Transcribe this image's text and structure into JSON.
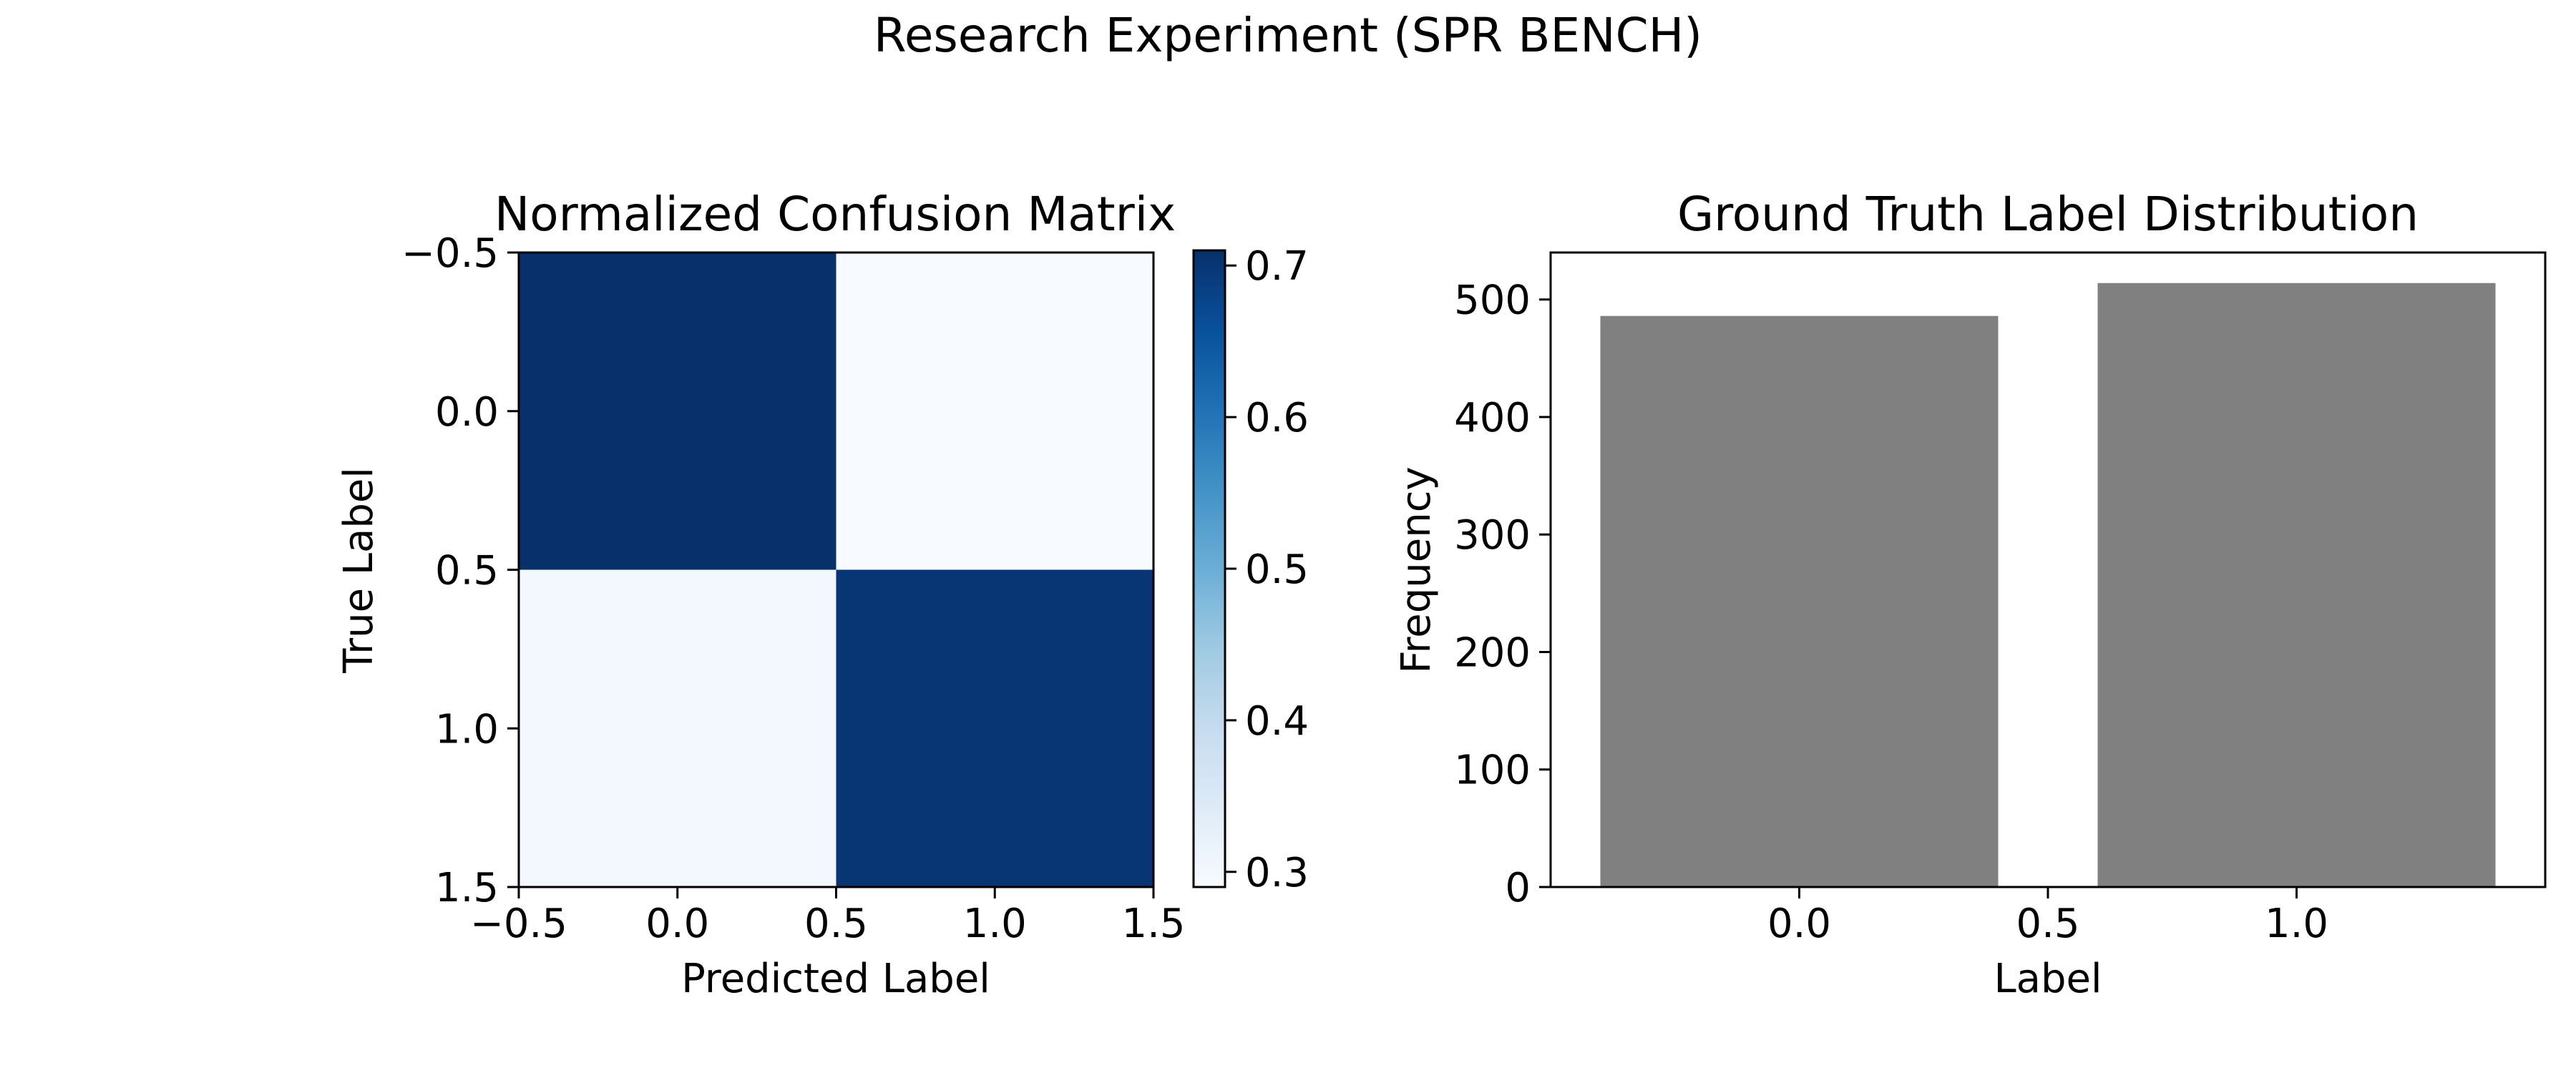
{
  "figure": {
    "suptitle": "Research Experiment (SPR BENCH)"
  },
  "chart_data": [
    {
      "type": "heatmap",
      "title": "Normalized Confusion Matrix",
      "xlabel": "Predicted Label",
      "ylabel": "True Label",
      "xticks": [
        "−0.5",
        "0.0",
        "0.5",
        "1.0",
        "1.5"
      ],
      "yticks": [
        "−0.5",
        "0.0",
        "0.5",
        "1.0",
        "1.5"
      ],
      "xlim": [
        -0.5,
        1.5
      ],
      "ylim": [
        1.5,
        -0.5
      ],
      "matrix": [
        [
          0.71,
          0.29
        ],
        [
          0.3,
          0.7
        ]
      ],
      "colormap": "Blues",
      "colorbar": {
        "min": 0.29,
        "max": 0.71,
        "ticks": [
          "0.3",
          "0.4",
          "0.5",
          "0.6",
          "0.7"
        ],
        "tick_values": [
          0.3,
          0.4,
          0.5,
          0.6,
          0.7
        ]
      },
      "grid": false
    },
    {
      "type": "bar",
      "title": "Ground Truth Label Distribution",
      "xlabel": "Label",
      "ylabel": "Frequency",
      "categories": [
        0.0,
        1.0
      ],
      "values": [
        486,
        514
      ],
      "bar_width": 0.8,
      "xlim": [
        -0.5,
        1.5
      ],
      "ylim": [
        0,
        540
      ],
      "xticks": [
        "0.0",
        "0.5",
        "1.0"
      ],
      "xtick_values": [
        0.0,
        0.5,
        1.0
      ],
      "yticks": [
        "0",
        "100",
        "200",
        "300",
        "400",
        "500"
      ],
      "ytick_values": [
        0,
        100,
        200,
        300,
        400,
        500
      ],
      "bar_color": "#808080",
      "grid": false
    }
  ]
}
